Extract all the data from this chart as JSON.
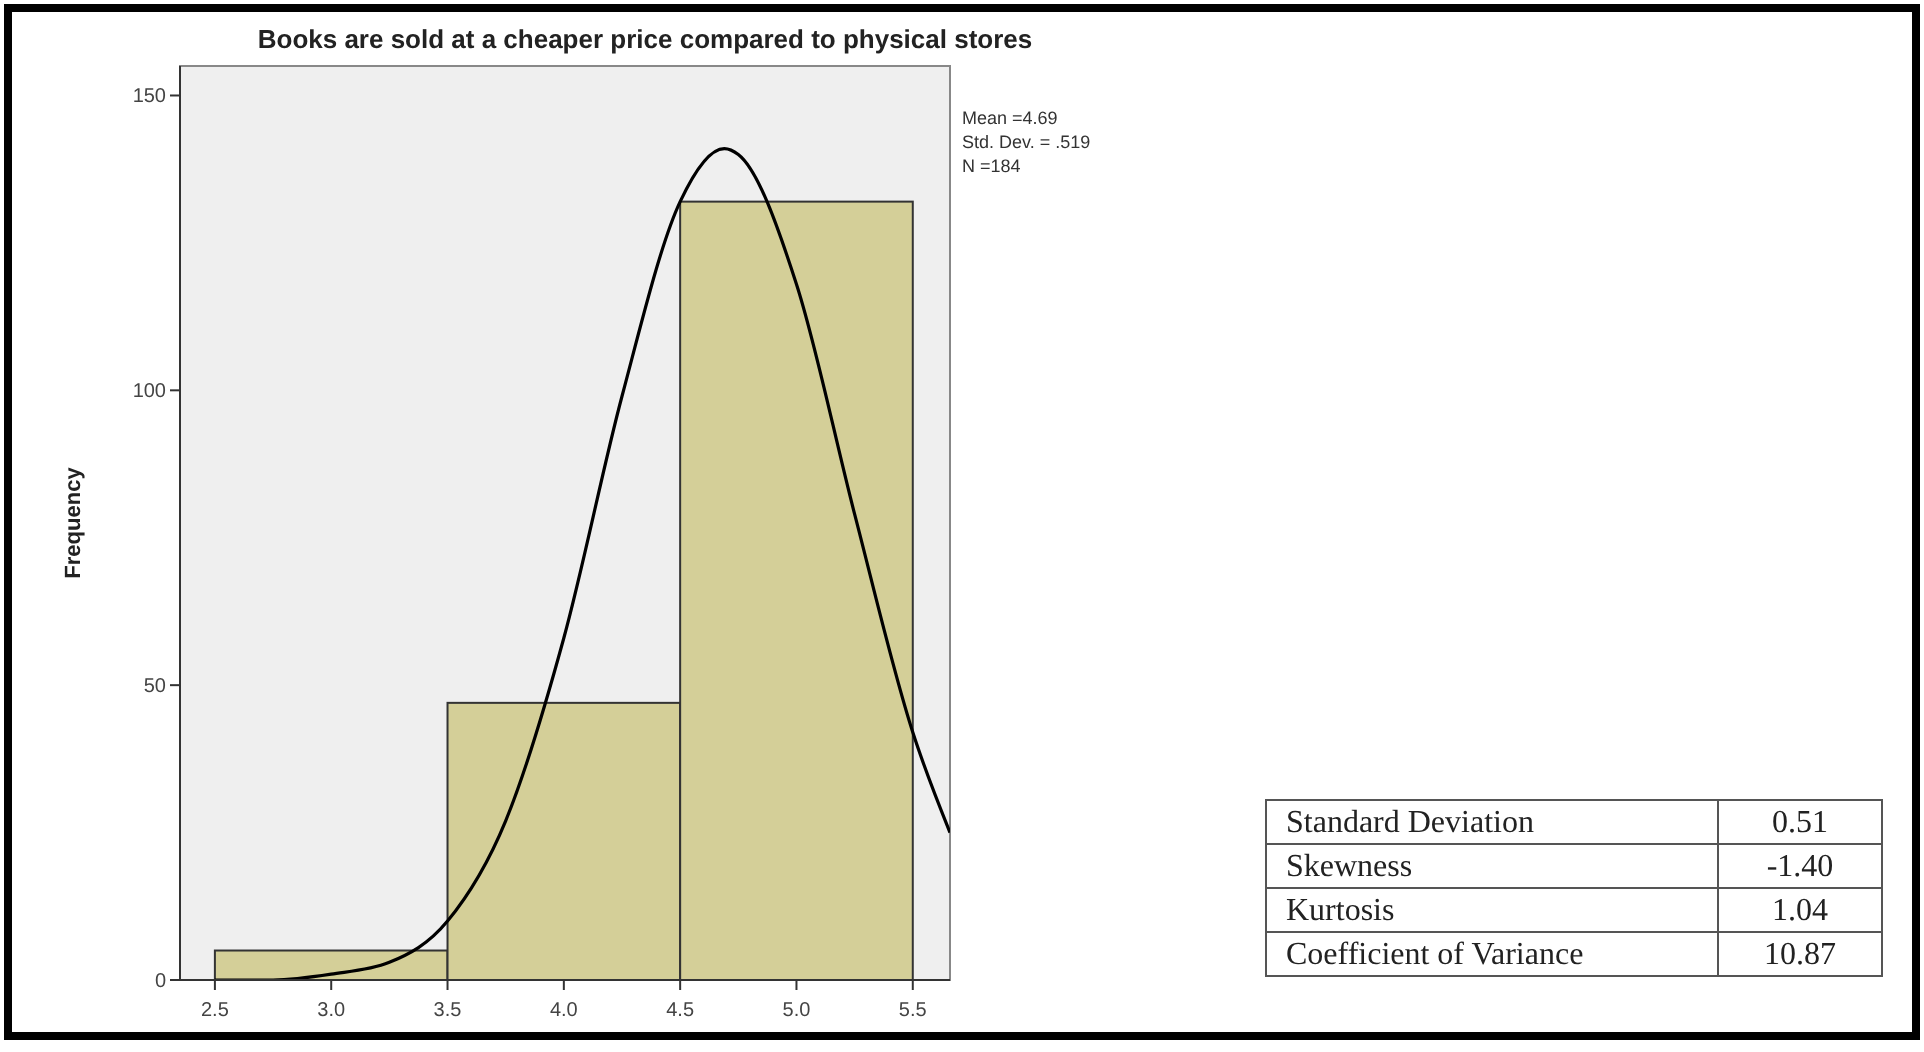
{
  "chart_data": [
    {
      "type": "histogram",
      "title": "Books are sold at a cheaper price compared to physical stores",
      "ylabel": "Frequency",
      "bins": [
        2.5,
        3.5,
        4.5,
        5.5
      ],
      "values": [
        5,
        47,
        132
      ],
      "color": "#d4cf98",
      "series": [
        {
          "type": "line",
          "color": "#000000",
          "x": [
            2.5,
            2.75,
            3.0,
            3.25,
            3.5,
            3.75,
            4.0,
            4.25,
            4.5,
            4.69,
            4.75,
            5.0,
            5.25,
            5.5,
            5.66
          ],
          "values": [
            0,
            0,
            1,
            3,
            10,
            27,
            58,
            99,
            132,
            141,
            140,
            118,
            79,
            42,
            25
          ]
        }
      ],
      "xlim": [
        2.35,
        5.66
      ],
      "ylim": [
        0,
        155
      ],
      "xticks": [
        2.5,
        {
          "value": 3,
          "label": "3.0"
        },
        3.5,
        {
          "value": 4,
          "label": "4.0"
        },
        4.5,
        {
          "value": 5,
          "label": "5.0"
        },
        5.5
      ],
      "yticks": [
        0,
        50,
        100,
        150
      ],
      "annotations": [
        "Mean =4.69",
        "Std. Dev. = .519",
        "N =184"
      ]
    },
    {
      "type": "other",
      "categories": [
        "Standard Deviation",
        "Skewness",
        "Kurtosis",
        "Coefficient of Variance"
      ],
      "value_labels": [
        "0.51",
        "-1.40",
        "1.04",
        "10.87"
      ]
    }
  ]
}
